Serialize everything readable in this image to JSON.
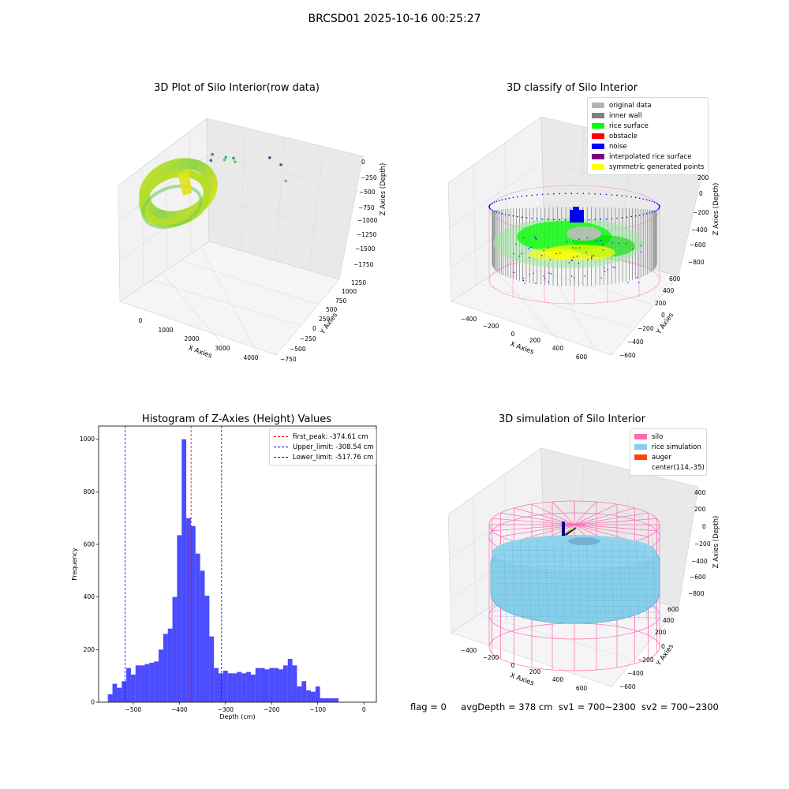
{
  "figure": {
    "suptitle": "BRCSD01 2025-10-16 00:25:27",
    "footer": {
      "flag": "flag = 0",
      "avg_depth": "avgDepth = 378 cm",
      "sv1": "sv1 = 700~2300",
      "sv2": "sv2 = 700~2300"
    }
  },
  "chart_data": [
    {
      "type": "scatter3d",
      "title": "3D Plot of Silo Interior(row data)",
      "xlabel": "X Axies",
      "ylabel": "Y Axies",
      "zlabel": "Z Axies (Depth)",
      "x_ticks": [
        "0",
        "1000",
        "2000",
        "3000",
        "4000"
      ],
      "y_ticks": [
        "−750",
        "−500",
        "−250",
        "0",
        "250",
        "500",
        "750",
        "1000",
        "1250"
      ],
      "z_ticks": [
        "−1750",
        "−1500",
        "−1250",
        "−1000",
        "−750",
        "−500",
        "−250",
        "0"
      ],
      "colormap": "viridis",
      "outlier_points": [
        {
          "x": 700,
          "y": 400,
          "z": -900
        },
        {
          "x": 1200,
          "y": 300,
          "z": -1000
        },
        {
          "x": 1000,
          "y": 200,
          "z": -1100
        },
        {
          "x": 1400,
          "y": 100,
          "z": -1200
        },
        {
          "x": 900,
          "y": -100,
          "z": -1300
        },
        {
          "x": 1100,
          "y": -300,
          "z": -1350
        },
        {
          "x": 3200,
          "y": -300,
          "z": -1700
        },
        {
          "x": 3600,
          "y": -300,
          "z": -1650
        },
        {
          "x": 3900,
          "y": -400,
          "z": -1500
        }
      ]
    },
    {
      "type": "scatter3d",
      "title": "3D classify of Silo Interior",
      "xlabel": "X Axies",
      "ylabel": "Y Axies",
      "zlabel": "Z Axies (Depth)",
      "x_ticks": [
        "−400",
        "−200",
        "0",
        "200",
        "400",
        "600"
      ],
      "y_ticks": [
        "−600",
        "−400",
        "−200",
        "0",
        "200",
        "400",
        "600"
      ],
      "z_ticks": [
        "−800",
        "−600",
        "−400",
        "−200",
        "0",
        "200"
      ],
      "legend": [
        {
          "label": "original data",
          "color": "#b4b4b4"
        },
        {
          "label": "inner wall",
          "color": "#808080"
        },
        {
          "label": "rice surface",
          "color": "#00ff00"
        },
        {
          "label": "obstacle",
          "color": "#ff0000"
        },
        {
          "label": "noise",
          "color": "#0000ff"
        },
        {
          "label": "interpolated rice surface",
          "color": "#800080"
        },
        {
          "label": "symmetric generated points",
          "color": "#ffff00"
        }
      ]
    },
    {
      "type": "bar",
      "title": "Histogram of Z-Axies (Height) Values",
      "xlabel": "Depth (cm)",
      "ylabel": "Frequency",
      "xlim": [
        -575,
        27
      ],
      "ylim": [
        0,
        1050
      ],
      "x_ticks": [
        -500,
        -400,
        -300,
        -200,
        -100,
        0
      ],
      "y_ticks": [
        0,
        200,
        400,
        600,
        800,
        1000
      ],
      "bar_color": "#0000ff",
      "bin_start": -555,
      "bin_width": 10,
      "values": [
        30,
        70,
        55,
        80,
        130,
        105,
        140,
        140,
        145,
        150,
        155,
        200,
        260,
        280,
        400,
        635,
        1000,
        700,
        670,
        565,
        500,
        405,
        250,
        130,
        110,
        120,
        110,
        110,
        115,
        110,
        115,
        105,
        130,
        130,
        125,
        130,
        130,
        125,
        140,
        165,
        140,
        60,
        80,
        45,
        40,
        60,
        15,
        15,
        15,
        15
      ],
      "vlines": [
        {
          "x": -374.61,
          "color": "#ff0000",
          "label": "first_peak: -374.61 cm"
        },
        {
          "x": -308.54,
          "color": "#0000ff",
          "label": "Upper_limit: -308.54 cm"
        },
        {
          "x": -517.76,
          "color": "#0000ff",
          "label": "Lower_limit: -517.76 cm"
        }
      ]
    },
    {
      "type": "surface3d",
      "title": "3D simulation of Silo Interior",
      "xlabel": "X Axies",
      "ylabel": "Y Axies",
      "zlabel": "Z Axies (Depth)",
      "x_ticks": [
        "−400",
        "−200",
        "0",
        "200",
        "400",
        "600"
      ],
      "y_ticks": [
        "−600",
        "−400",
        "−200",
        "0",
        "200",
        "400",
        "600"
      ],
      "z_ticks": [
        "−800",
        "−600",
        "−400",
        "−200",
        "0",
        "200",
        "400"
      ],
      "legend": [
        {
          "label": "silo",
          "color": "#ff69b4"
        },
        {
          "label": "rice simulation",
          "color": "#87ceeb"
        },
        {
          "label": "auger",
          "color": "#ff4500"
        },
        {
          "label": "center(114,-35)",
          "color": ""
        }
      ]
    }
  ]
}
